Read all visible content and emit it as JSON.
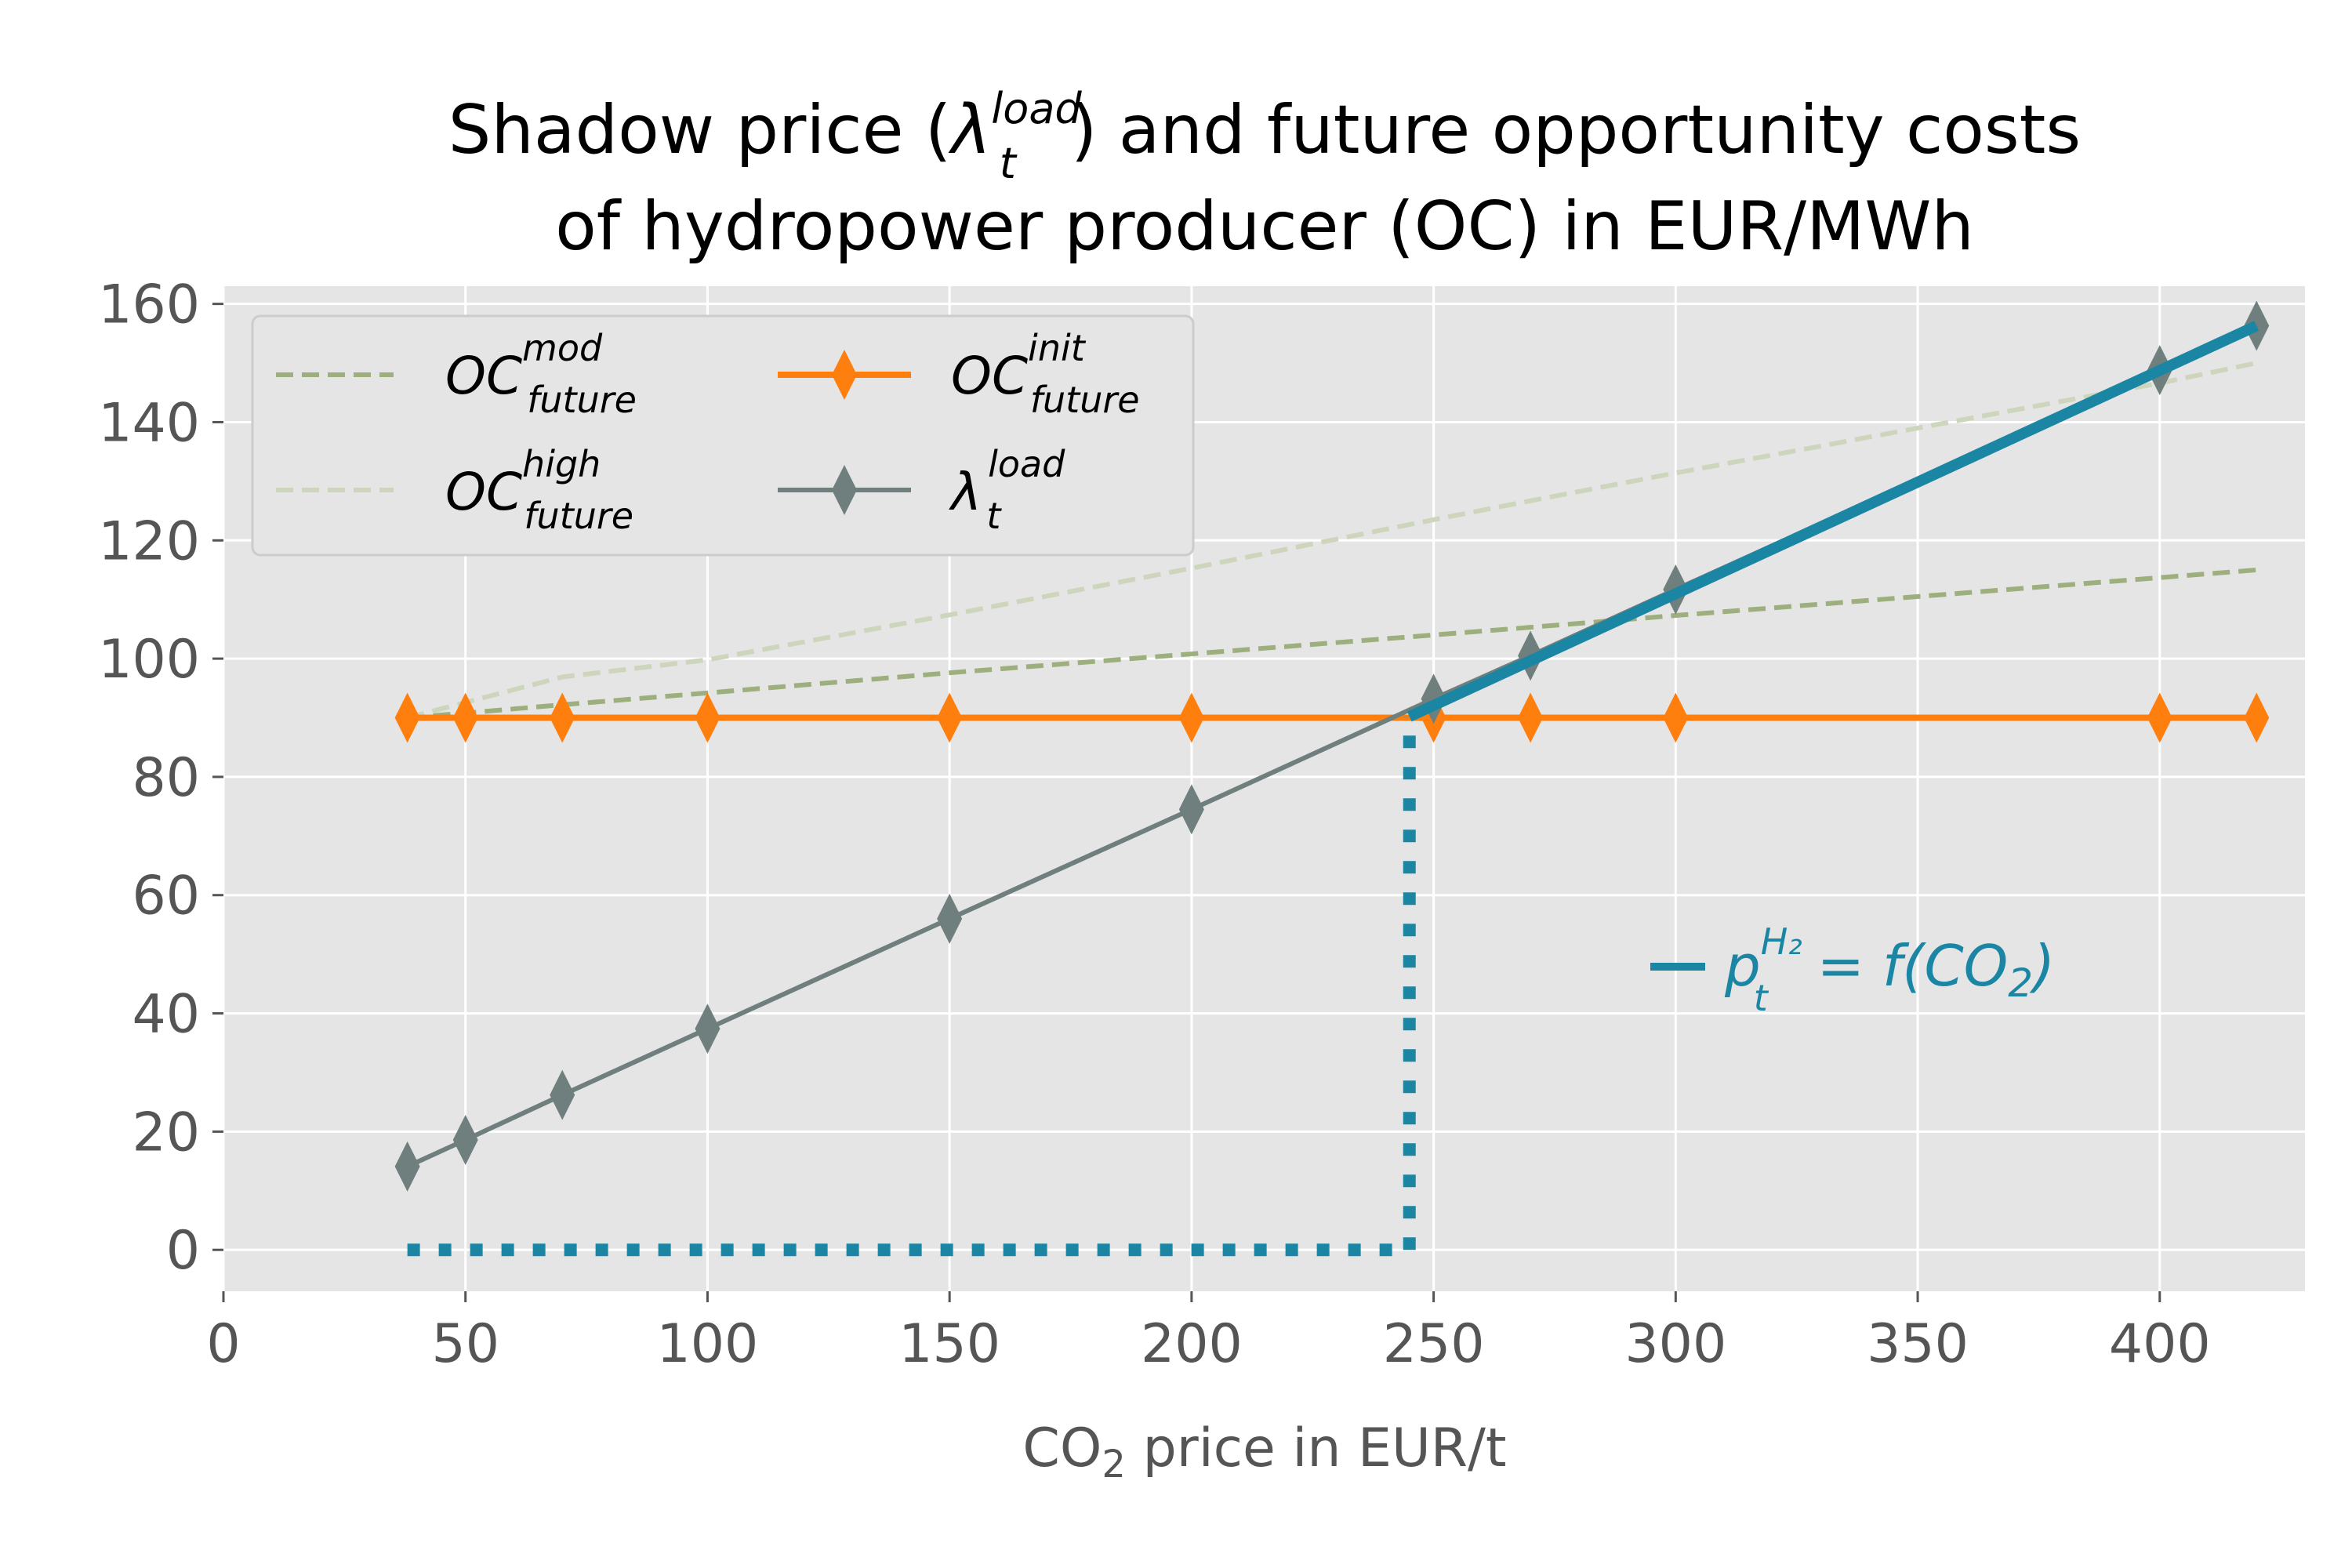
{
  "chart_data": {
    "type": "line",
    "title": {
      "line1_prefix": "Shadow price (",
      "line1_symbol": "λ",
      "line1_sub": "t",
      "line1_sup": "load",
      "line1_suffix": ") and future opportunity costs",
      "line2": "of hydropower producer (OC) in EUR/MWh"
    },
    "xlabel": {
      "prefix": "CO",
      "sub": "2",
      "suffix": " price in EUR/t"
    },
    "ylabel": "",
    "xlim": [
      0,
      430
    ],
    "ylim": [
      -7,
      163
    ],
    "xticks": [
      0,
      50,
      100,
      150,
      200,
      250,
      300,
      350,
      400
    ],
    "yticks": [
      0,
      20,
      40,
      60,
      80,
      100,
      120,
      140,
      160
    ],
    "grid": true,
    "legend_placement": "top-left",
    "series": [
      {
        "key": "oc_mod",
        "legend": {
          "base": "OC",
          "sup": "mod",
          "sub": "future"
        },
        "style": "dashed",
        "color": "#9caf7d",
        "x": [
          38,
          50,
          70,
          100,
          150,
          200,
          250,
          270,
          300,
          400,
          420
        ],
        "y": [
          90,
          90.8,
          92.2,
          94.2,
          97.6,
          100.8,
          104,
          105.3,
          107.3,
          113.7,
          115
        ]
      },
      {
        "key": "oc_high",
        "legend": {
          "base": "OC",
          "sup": "high",
          "sub": "future"
        },
        "style": "dashed",
        "color": "#cdd5bd",
        "x": [
          38,
          50,
          70,
          100,
          150,
          200,
          250,
          270,
          300,
          400,
          420
        ],
        "y": [
          90,
          92.6,
          96.9,
          99.8,
          107.4,
          115.3,
          123.5,
          126.7,
          131.4,
          146.6,
          150
        ]
      },
      {
        "key": "oc_init",
        "legend": {
          "base": "OC",
          "sup": "init",
          "sub": "future"
        },
        "style": "solid-marker",
        "color": "#ff7f0e",
        "x": [
          38,
          50,
          70,
          100,
          150,
          200,
          250,
          270,
          300,
          400,
          420
        ],
        "y": [
          90,
          90,
          90,
          90,
          90,
          90,
          90,
          90,
          90,
          90,
          90
        ]
      },
      {
        "key": "lambda_load",
        "legend": {
          "base": "λ",
          "sup": "load",
          "sub": "t"
        },
        "style": "solid-marker",
        "color": "#6f7f7d",
        "x": [
          38,
          50,
          70,
          100,
          150,
          200,
          250,
          270,
          300,
          400,
          420
        ],
        "y": [
          14.1,
          18.6,
          26.2,
          37.4,
          56,
          74.5,
          93.2,
          100.5,
          111.7,
          148.8,
          156.3
        ]
      }
    ],
    "highlight": {
      "color": "#1b86a3",
      "x": [
        245,
        420
      ],
      "y": [
        90.2,
        156.3
      ],
      "threshold_x": 245,
      "threshold_y": 90.2,
      "dotted_h_x": [
        38,
        245
      ],
      "annotation": {
        "base": "p",
        "sup": "H₂",
        "sub": "t",
        "rest": " = f(CO",
        "rest_sub": "2",
        "rest_end": ")"
      }
    }
  }
}
